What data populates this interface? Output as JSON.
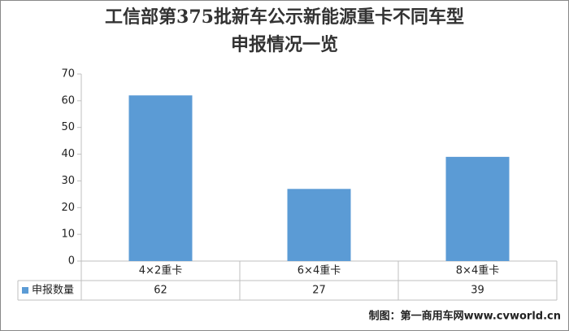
{
  "chart_data": {
    "type": "bar",
    "title": [
      "工信部第375批新车公示新能源重卡不同车型",
      "申报情况一览"
    ],
    "categories": [
      "4×2重卡",
      "6×4重卡",
      "8×4重卡"
    ],
    "series": [
      {
        "name": "申报数量",
        "color": "#5b9bd5",
        "values": [
          62,
          27,
          39
        ]
      }
    ],
    "ylim": [
      0,
      70
    ],
    "yticks": [
      0,
      10,
      20,
      30,
      40,
      50,
      60,
      70
    ],
    "grid": false,
    "credit": "制图：第一商用车网www.cvworld.cn"
  }
}
